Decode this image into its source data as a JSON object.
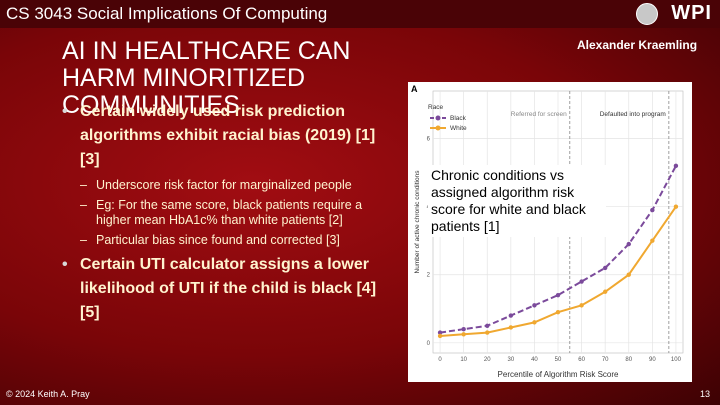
{
  "header": {
    "course": "CS 3043 Social Implications Of Computing",
    "logo": "WPI"
  },
  "title": "AI IN HEALTHCARE CAN HARM MINORITIZED COMMUNITIES",
  "author": "Alexander Kraemling",
  "bullets": [
    {
      "text": "Certain widely used risk prediction algorithms exhibit racial bias (2019) [1] [3]",
      "sub": [
        "Underscore risk factor for marginalized people",
        "Eg: For the same score, black patients require a higher mean HbA1c% than white patients [2]",
        "Particular bias since found and corrected [3]"
      ]
    },
    {
      "text": "Certain UTI calculator assigns a lower likelihood of UTI if the child is black [4] [5]",
      "sub": []
    }
  ],
  "figure": {
    "caption": "Chronic conditions vs assigned algorithm risk score for white and black patients [1]",
    "chart_data": {
      "type": "line",
      "panel": "A",
      "legend_title": "Race",
      "x": [
        0,
        10,
        20,
        30,
        40,
        50,
        60,
        70,
        80,
        90,
        100
      ],
      "series": [
        {
          "name": "Black",
          "color": "#7b4a9b",
          "dash": true,
          "values": [
            0.3,
            0.4,
            0.5,
            0.8,
            1.1,
            1.4,
            1.8,
            2.2,
            2.9,
            3.9,
            5.2
          ]
        },
        {
          "name": "White",
          "color": "#f0a830",
          "dash": false,
          "values": [
            0.2,
            0.25,
            0.3,
            0.45,
            0.6,
            0.9,
            1.1,
            1.5,
            2.0,
            3.0,
            4.0
          ]
        }
      ],
      "xlabel": "Percentile of Algorithm Risk Score",
      "ylabel": "Number of active chronic conditions",
      "xlim": [
        -3,
        103
      ],
      "xticks": [
        0,
        10,
        20,
        30,
        40,
        50,
        60,
        70,
        80,
        90,
        100
      ],
      "ylim": [
        -0.3,
        7.4
      ],
      "yticks": [
        0,
        2,
        4,
        6
      ],
      "grid": true,
      "annotations": [
        {
          "text": "Referred for screen",
          "x": 55
        },
        {
          "text": "Defaulted into program",
          "x": 97
        }
      ]
    }
  },
  "footer": {
    "copyright": "© 2024 Keith A. Pray",
    "page": 13
  }
}
